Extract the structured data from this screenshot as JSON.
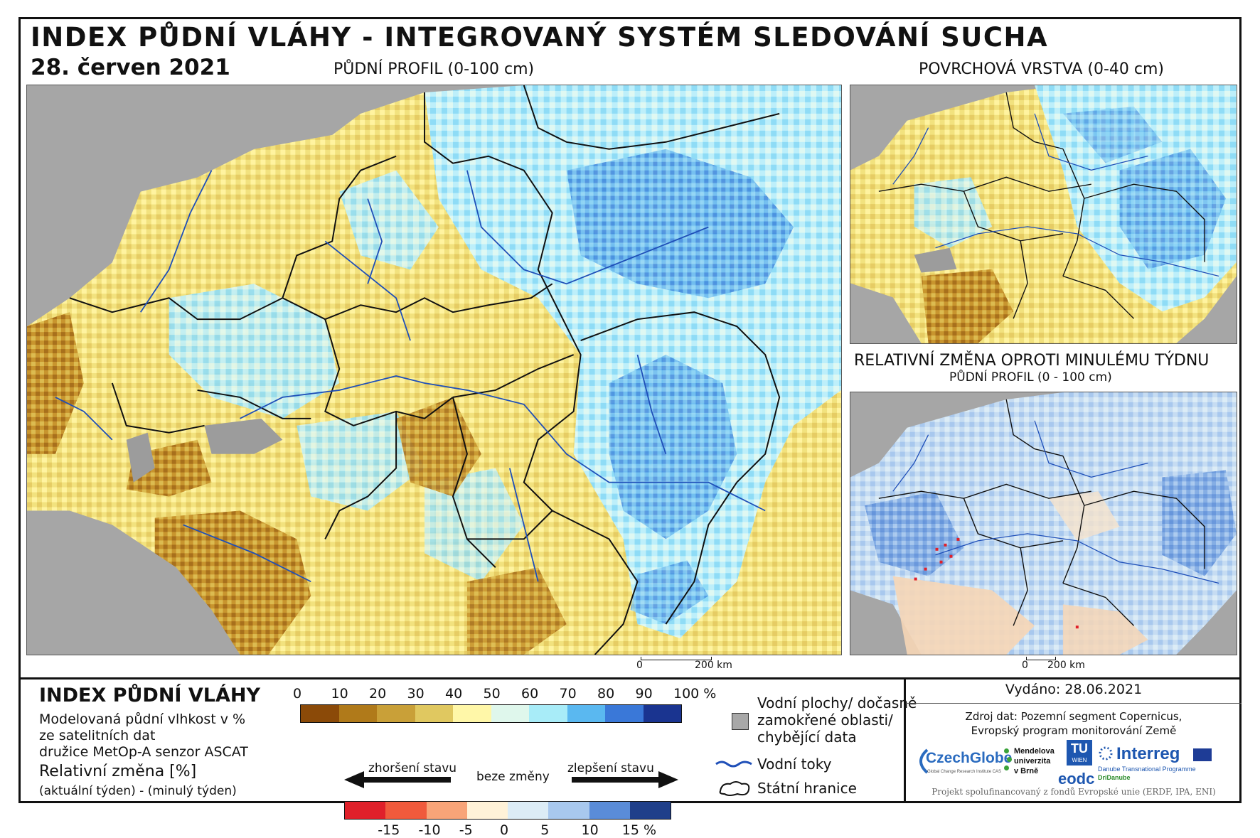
{
  "header": {
    "title": "INDEX PŮDNÍ VLÁHY - INTEGROVANÝ SYSTÉM SLEDOVÁNÍ SUCHA",
    "date": "28. červen 2021"
  },
  "main_map": {
    "title": "PŮDNÍ PROFIL (0-100 cm)",
    "scale": {
      "zero": "0",
      "end": "200 km"
    }
  },
  "top_right_map": {
    "title": "POVRCHOVÁ VRSTVA (0-40 cm)"
  },
  "bottom_right_map": {
    "title": "RELATIVNÍ ZMĚNA OPROTI MINULÉMU TÝDNU",
    "subtitle": "PŮDNÍ PROFIL (0 - 100 cm)",
    "scale": {
      "zero": "0",
      "end": "200 km"
    }
  },
  "legend": {
    "title": "INDEX PŮDNÍ VLÁHY",
    "desc_line1": "Modelovaná půdní vlhkost v %",
    "desc_line2": "ze satelitních dat",
    "desc_line3": "družice MetOp-A senzor ASCAT",
    "change_title": "Relativní změna [%]",
    "change_desc": "(aktuální týden) - (minulý týden)",
    "index_ticks": [
      "0",
      "10",
      "20",
      "30",
      "40",
      "50",
      "60",
      "70",
      "80",
      "90",
      "100 %"
    ],
    "index_colors": [
      "#8b4a08",
      "#b07a1a",
      "#c9a038",
      "#e0c860",
      "#fff7a8",
      "#dff7ec",
      "#a8ecf8",
      "#5ab8f0",
      "#3a78d8",
      "#1a3490"
    ],
    "change_ticks": [
      "-15",
      "-10",
      "-5",
      "0",
      "5",
      "10",
      "15 %"
    ],
    "change_colors": [
      "#e0202a",
      "#f05a3c",
      "#f8a478",
      "#fff2d8",
      "#dcecf6",
      "#a8c8ee",
      "#5a8cd8",
      "#1f3f8a"
    ],
    "worse": "zhoršení stavu",
    "no_change": "beze změny",
    "better": "zlepšení stavu",
    "water_label_1": "Vodní plochy/ dočasně",
    "water_label_2": "zamokřené oblasti/",
    "water_label_3": "chybějící data",
    "rivers_label": "Vodní toky",
    "borders_label": "Státní hranice"
  },
  "credits": {
    "issued": "Vydáno: 28.06.2021",
    "source_line1": "Zdroj dat: Pozemní segment Copernicus,",
    "source_line2": "Evropský program monitorování Země",
    "logo_czechglobe": "CzechGlobe",
    "logo_czechglobe_sub": "Global Change Research Institute CAS",
    "logo_mendel_1": "Mendelova",
    "logo_mendel_2": "univerzita",
    "logo_mendel_3": "v Brně",
    "logo_tu": "TU",
    "logo_tu_sub": "WIEN",
    "logo_eodc": "eodc",
    "logo_interreg": "Interreg",
    "logo_interreg_sub1": "Danube Transnational Programme",
    "logo_interreg_sub2": "DriDanube",
    "footer": "Projekt spolufinancovaný z fondů Evropské unie (ERDF, IPA, ENI)"
  }
}
